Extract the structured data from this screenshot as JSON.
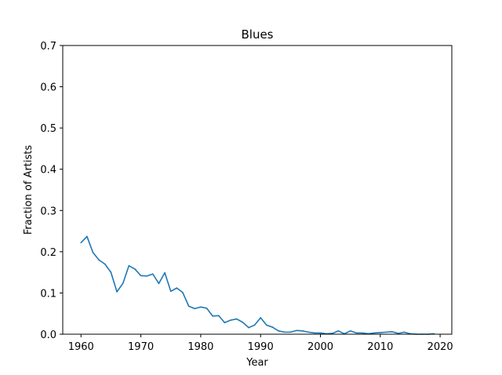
{
  "chart_data": {
    "type": "line",
    "title": "Blues",
    "xlabel": "Year",
    "ylabel": "Fraction of Artists",
    "xlim": [
      1956.95,
      2021.95
    ],
    "ylim": [
      0,
      0.7
    ],
    "xticks": [
      1960,
      1970,
      1980,
      1990,
      2000,
      2010,
      2020
    ],
    "yticks": [
      0.0,
      0.1,
      0.2,
      0.3,
      0.4,
      0.5,
      0.6,
      0.7
    ],
    "xtick_labels": [
      "1960",
      "1970",
      "1980",
      "1990",
      "2000",
      "2010",
      "2020"
    ],
    "ytick_labels": [
      "0.0",
      "0.1",
      "0.2",
      "0.3",
      "0.4",
      "0.5",
      "0.6",
      "0.7"
    ],
    "grid": false,
    "legend": "none",
    "series": [
      {
        "color": "#1f77b4",
        "x": [
          1960,
          1961,
          1962,
          1963,
          1964,
          1965,
          1966,
          1967,
          1968,
          1969,
          1970,
          1971,
          1972,
          1973,
          1974,
          1975,
          1976,
          1977,
          1978,
          1979,
          1980,
          1981,
          1982,
          1983,
          1984,
          1985,
          1986,
          1987,
          1988,
          1989,
          1990,
          1991,
          1992,
          1993,
          1994,
          1995,
          1996,
          1997,
          1998,
          1999,
          2000,
          2001,
          2002,
          2003,
          2004,
          2005,
          2006,
          2007,
          2008,
          2009,
          2010,
          2011,
          2012,
          2013,
          2014,
          2015,
          2016,
          2017,
          2018,
          2019
        ],
        "y": [
          0.222,
          0.237,
          0.198,
          0.18,
          0.17,
          0.15,
          0.103,
          0.123,
          0.166,
          0.158,
          0.142,
          0.141,
          0.146,
          0.123,
          0.149,
          0.104,
          0.112,
          0.101,
          0.068,
          0.062,
          0.066,
          0.063,
          0.044,
          0.045,
          0.028,
          0.034,
          0.037,
          0.029,
          0.016,
          0.022,
          0.04,
          0.022,
          0.017,
          0.008,
          0.005,
          0.005,
          0.009,
          0.008,
          0.005,
          0.003,
          0.003,
          0.001,
          0.002,
          0.008,
          0.001,
          0.008,
          0.003,
          0.003,
          0.001,
          0.003,
          0.004,
          0.005,
          0.006,
          0.002,
          0.005,
          0.001,
          0.0,
          0.0,
          0.0,
          0.001
        ]
      }
    ]
  }
}
